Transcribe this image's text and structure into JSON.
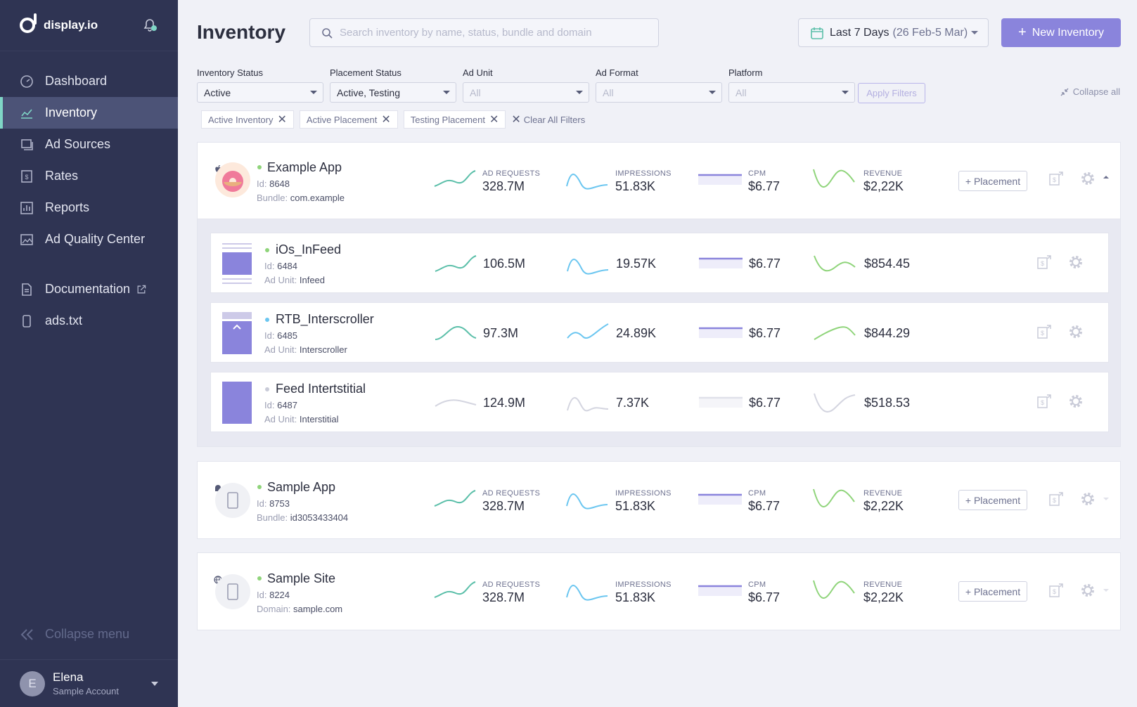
{
  "brand": {
    "name": "display.io"
  },
  "nav": [
    {
      "label": "Dashboard",
      "icon": "dashboard-icon"
    },
    {
      "label": "Inventory",
      "icon": "inventory-icon",
      "active": true
    },
    {
      "label": "Ad Sources",
      "icon": "ad-sources-icon"
    },
    {
      "label": "Rates",
      "icon": "rates-icon"
    },
    {
      "label": "Reports",
      "icon": "reports-icon"
    },
    {
      "label": "Ad Quality Center",
      "icon": "ad-quality-icon"
    },
    {
      "label": "Documentation",
      "icon": "documentation-icon"
    },
    {
      "label": "ads.txt",
      "icon": "ads-txt-icon"
    }
  ],
  "collapse_menu": "Collapse menu",
  "user": {
    "initial": "E",
    "name": "Elena",
    "account": "Sample Account"
  },
  "header": {
    "title": "Inventory",
    "search_placeholder": "Search inventory by name, status, bundle and domain",
    "date_range": "Last 7 Days",
    "date_detail": "(26 Feb-5 Mar)",
    "new_button": "New Inventory"
  },
  "filters": [
    {
      "label": "Inventory Status",
      "value": "Active",
      "placeholder": false
    },
    {
      "label": "Placement Status",
      "value": "Active, Testing",
      "placeholder": false
    },
    {
      "label": "Ad Unit",
      "value": "All",
      "placeholder": true
    },
    {
      "label": "Ad Format",
      "value": "All",
      "placeholder": true
    },
    {
      "label": "Platform",
      "value": "All",
      "placeholder": true
    }
  ],
  "apply_filters": "Apply Filters",
  "collapse_all": "Collapse all",
  "chips": [
    "Active Inventory",
    "Active Placement",
    "Testing Placement"
  ],
  "clear_all": "Clear All Filters",
  "metric_labels": {
    "requests": "AD REQUESTS",
    "impressions": "IMPRESSIONS",
    "cpm": "CPM",
    "revenue": "REVENUE"
  },
  "placement_button": "+ Placement",
  "apps": [
    {
      "name": "Example App",
      "id": "8648",
      "key_label": "Bundle:",
      "key_value": "com.example",
      "requests": "328.7M",
      "impressions": "51.83K",
      "cpm": "$6.77",
      "revenue": "$2,22K",
      "status_color": "#8fd47a"
    },
    {
      "name": "Sample App",
      "id": "8753",
      "key_label": "Bundle:",
      "key_value": "id3053433404",
      "requests": "328.7M",
      "impressions": "51.83K",
      "cpm": "$6.77",
      "revenue": "$2,22K",
      "status_color": "#8fd47a"
    },
    {
      "name": "Sample Site",
      "id": "8224",
      "key_label": "Domain:",
      "key_value": "sample.com",
      "requests": "328.7M",
      "impressions": "51.83K",
      "cpm": "$6.77",
      "revenue": "$2,22K",
      "status_color": "#8fd47a"
    }
  ],
  "placements": [
    {
      "name": "iOs_InFeed",
      "id": "6484",
      "unit_label": "Ad Unit:",
      "unit": "Infeed",
      "requests": "106.5M",
      "impressions": "19.57K",
      "cpm": "$6.77",
      "revenue": "$854.45",
      "status_color": "#8fd47a"
    },
    {
      "name": "RTB_Interscroller",
      "id": "6485",
      "unit_label": "Ad Unit:",
      "unit": "Interscroller",
      "requests": "97.3M",
      "impressions": "24.89K",
      "cpm": "$6.77",
      "revenue": "$844.29",
      "status_color": "#6bc6f0"
    },
    {
      "name": "Feed Intertstitial",
      "id": "6487",
      "unit_label": "Ad Unit:",
      "unit": "Interstitial",
      "requests": "124.9M",
      "impressions": "7.37K",
      "cpm": "$6.77",
      "revenue": "$518.53",
      "status_color": "#c9cbd8"
    }
  ],
  "id_label": "Id:"
}
